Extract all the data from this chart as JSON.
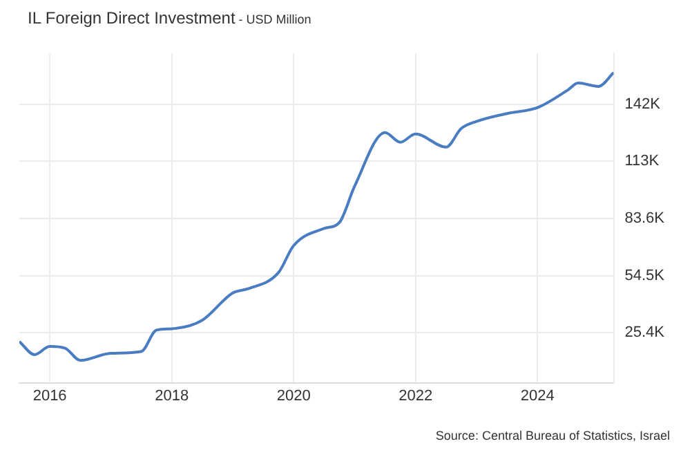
{
  "chart_data": {
    "type": "line",
    "title": "IL Foreign Direct Investment",
    "subtitle": "- USD Million",
    "x": [
      "2015-07",
      "2015-10",
      "2016-01",
      "2016-04",
      "2016-07",
      "2017-01",
      "2017-07",
      "2017-10",
      "2018-01",
      "2018-07",
      "2019-01",
      "2019-04",
      "2019-10",
      "2020-01",
      "2020-07",
      "2020-10",
      "2021-01",
      "2021-07",
      "2021-10",
      "2022-01",
      "2022-07",
      "2022-10",
      "2023-01",
      "2023-07",
      "2024-01",
      "2024-07",
      "2024-09",
      "2025-01",
      "2025-04"
    ],
    "series": [
      {
        "color": "#4a7cc1",
        "values": [
          21000,
          14300,
          18500,
          17600,
          11400,
          15000,
          15900,
          26800,
          27500,
          31800,
          45700,
          47800,
          56000,
          69800,
          78500,
          81500,
          100000,
          127300,
          122400,
          126600,
          119900,
          129400,
          133000,
          137000,
          140000,
          149000,
          152500,
          150800,
          157800
        ]
      }
    ],
    "xlim": [
      "2015-07",
      "2025-04"
    ],
    "xticks": [
      "2016",
      "2018",
      "2020",
      "2022",
      "2024"
    ],
    "ylim": [
      0,
      167600
    ],
    "yticks": [
      {
        "value": 25400,
        "label": "25.4K"
      },
      {
        "value": 54500,
        "label": "54.5K"
      },
      {
        "value": 83600,
        "label": "83.6K"
      },
      {
        "value": 112700,
        "label": "113K"
      },
      {
        "value": 141800,
        "label": "142K"
      }
    ],
    "grid": true,
    "legend": false,
    "marker": "none",
    "line_style": "solid",
    "annotations": [
      "Source: Central Bureau of Statistics, Israel"
    ]
  }
}
